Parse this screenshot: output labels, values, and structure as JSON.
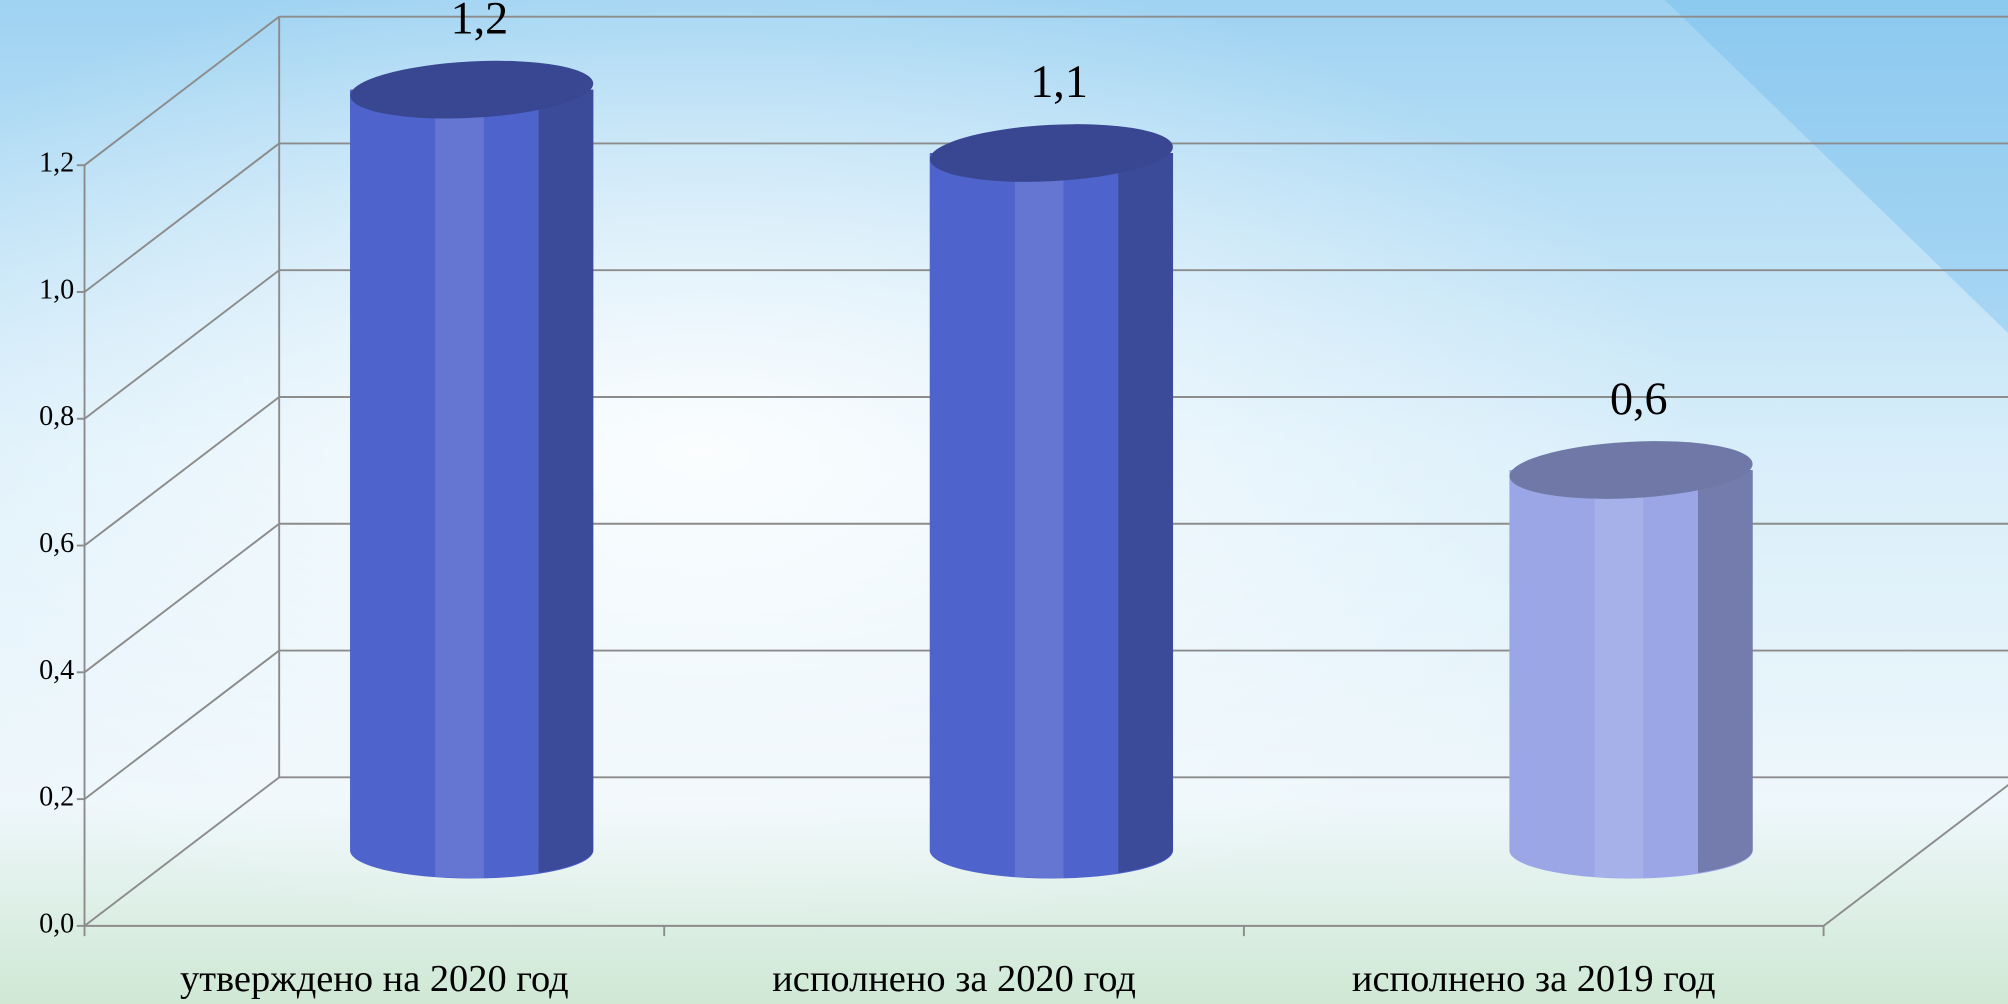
{
  "chart_data": {
    "type": "cylinder-bar",
    "categories": [
      "утверждено на 2020 год",
      "исполнено за 2020 год",
      "исполнено за 2019 год"
    ],
    "values": [
      1.2,
      1.1,
      0.6
    ],
    "value_labels": [
      "1,2",
      "1,1",
      "0,6"
    ],
    "colors": [
      "#4f63cc",
      "#4f63cc",
      "#9aa6e6"
    ],
    "ylim": [
      0,
      1.2
    ],
    "yticks": [
      {
        "value": 0,
        "label": "0,0"
      },
      {
        "value": 0.2,
        "label": "0,2"
      },
      {
        "value": 0.4,
        "label": "0,4"
      },
      {
        "value": 0.6,
        "label": "0,6"
      },
      {
        "value": 0.8,
        "label": "0,8"
      },
      {
        "value": 1.0,
        "label": "1,0"
      },
      {
        "value": 1.2,
        "label": "1,2"
      }
    ],
    "grid": true
  }
}
